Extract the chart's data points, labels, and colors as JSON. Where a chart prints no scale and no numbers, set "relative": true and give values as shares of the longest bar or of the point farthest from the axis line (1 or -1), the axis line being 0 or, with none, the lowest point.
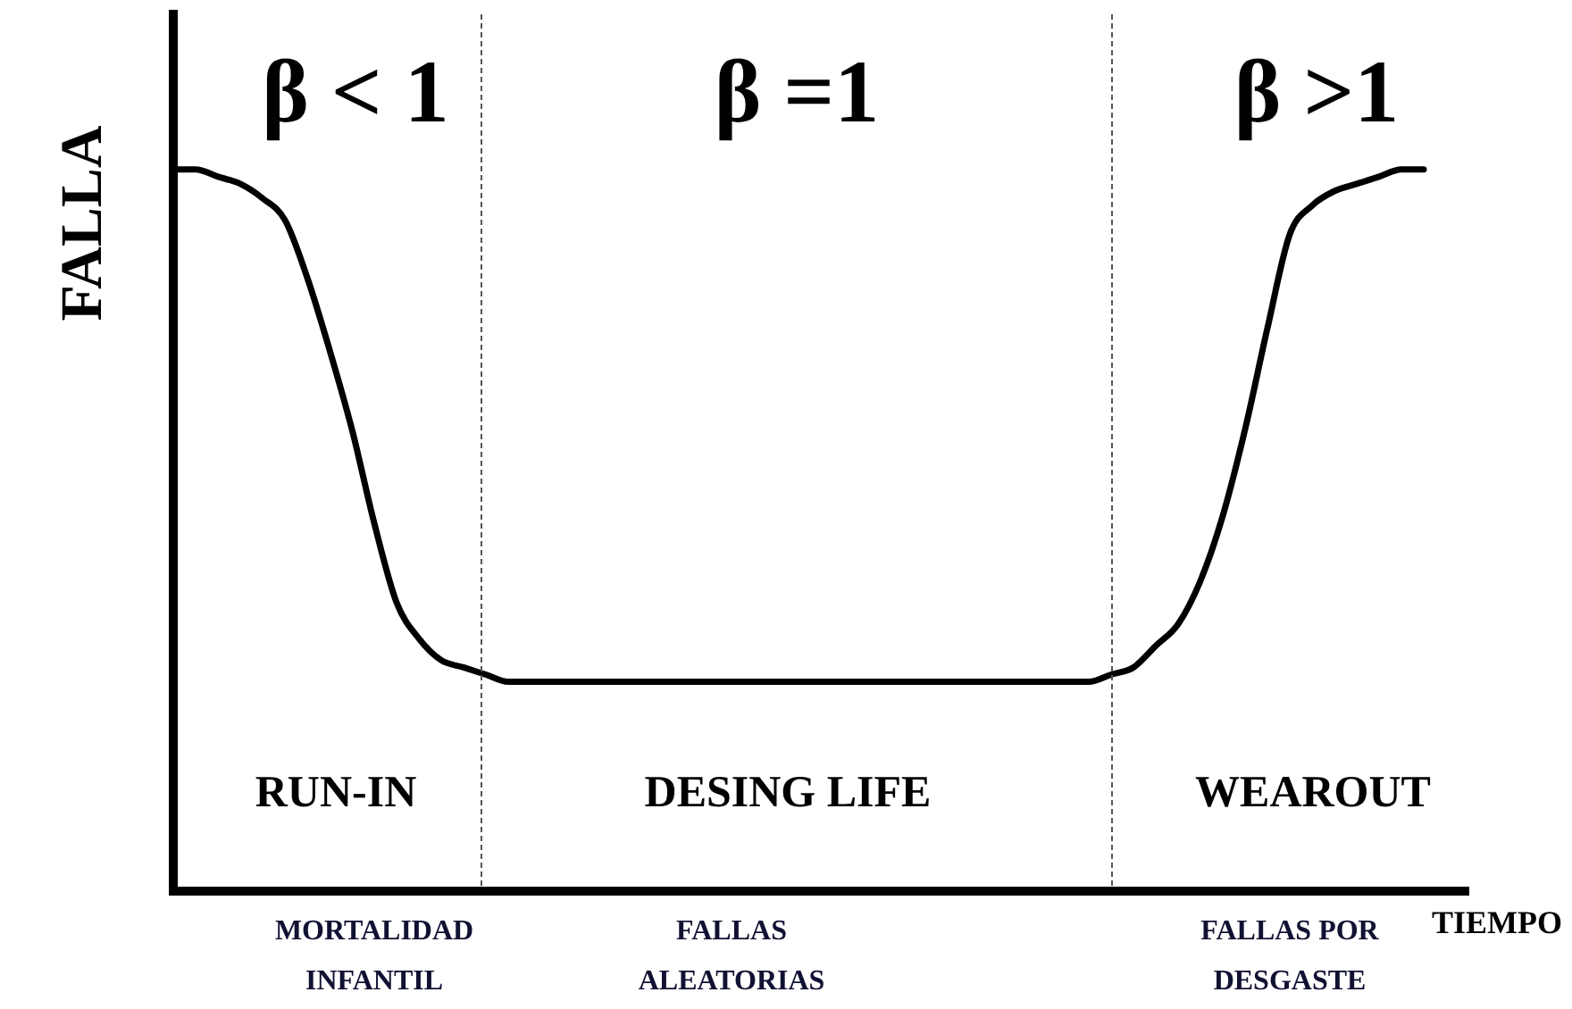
{
  "chart_data": {
    "type": "line",
    "xlabel": "TIEMPO",
    "ylabel": "FALLA",
    "categories": [
      null,
      null,
      null,
      null,
      null,
      null,
      null,
      null,
      null,
      "MORTALIDAD INFANTIL",
      null,
      null,
      null,
      null,
      null,
      null,
      null,
      null,
      null,
      null,
      null,
      null,
      null,
      null,
      null,
      "FALLAS ALEATORIAS",
      null,
      null,
      null,
      null,
      null,
      null,
      null,
      null,
      null,
      null,
      null,
      null,
      null,
      null,
      null,
      null,
      null,
      null,
      null,
      null,
      null,
      null,
      null,
      null,
      "FALLAS POR DESGASTE",
      null,
      null,
      null,
      null,
      null,
      null,
      null,
      null
    ],
    "series": [
      {
        "color": "#000000",
        "values": [
          1.0,
          1.0,
          0.99,
          0.98,
          0.96,
          0.93,
          0.85,
          0.75,
          0.64,
          0.51,
          0.4,
          0.35,
          0.32,
          0.31,
          0.3,
          0.29,
          0.29,
          0.29,
          0.29,
          0.29,
          0.29,
          0.29,
          0.29,
          0.29,
          0.29,
          0.29,
          0.29,
          0.29,
          0.29,
          0.29,
          0.29,
          0.29,
          0.29,
          0.29,
          0.29,
          0.29,
          0.29,
          0.29,
          0.29,
          0.29,
          0.29,
          0.29,
          0.3,
          0.31,
          0.34,
          0.37,
          0.43,
          0.52,
          0.64,
          0.78,
          0.91,
          0.95,
          0.97,
          0.98,
          0.99,
          1.0,
          1.0,
          null,
          null
        ]
      }
    ],
    "relative": true,
    "marker": "none",
    "line_style": "solid",
    "annotations": [
      "β < 1",
      "β =1",
      "β >1",
      "RUN-IN",
      "DESING LIFE",
      "WEAROUT"
    ]
  }
}
